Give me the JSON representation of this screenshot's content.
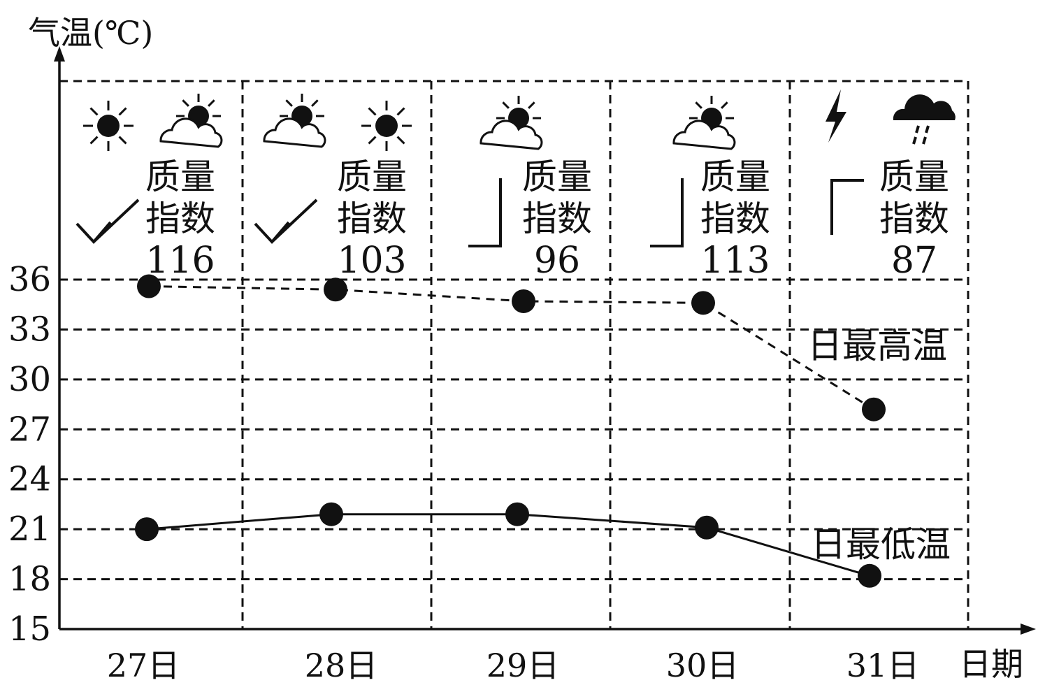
{
  "chart_data": {
    "type": "line",
    "y_axis_title": "气温(℃)",
    "x_axis_title": "日期",
    "categories": [
      "27日",
      "28日",
      "29日",
      "30日",
      "31日"
    ],
    "y_ticks": [
      15,
      18,
      21,
      24,
      27,
      30,
      33,
      36
    ],
    "ylim": [
      15,
      36
    ],
    "grid": true,
    "series": [
      {
        "name": "日最高温",
        "line_style": "dashed",
        "values": [
          35.6,
          35.4,
          34.7,
          34.6,
          28.2
        ]
      },
      {
        "name": "日最低温",
        "line_style": "solid",
        "values": [
          21.0,
          21.9,
          21.9,
          21.1,
          18.2
        ]
      }
    ],
    "annotations": {
      "quality_label_line1": "质量",
      "quality_label_line2": "指数",
      "days": [
        {
          "quality_index": "116",
          "weather": [
            "sun",
            "partly-cloudy"
          ],
          "wind": "wind-sign-a"
        },
        {
          "quality_index": "103",
          "weather": [
            "partly-cloudy",
            "sun"
          ],
          "wind": "wind-sign-a"
        },
        {
          "quality_index": "96",
          "weather": [
            "partly-cloudy"
          ],
          "wind": "wind-sign-b"
        },
        {
          "quality_index": "113",
          "weather": [
            "partly-cloudy"
          ],
          "wind": "wind-sign-b"
        },
        {
          "quality_index": "87",
          "weather": [
            "lightning",
            "rain"
          ],
          "wind": "wind-sign-c"
        }
      ]
    }
  }
}
